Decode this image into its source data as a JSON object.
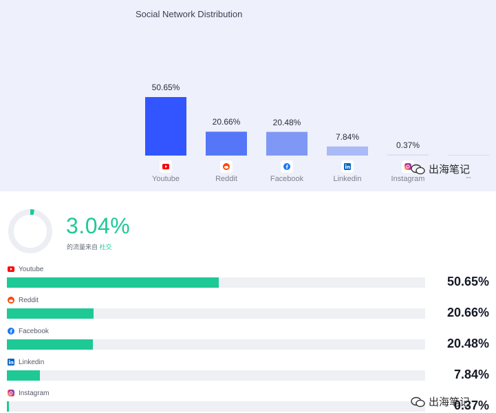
{
  "chart_data": {
    "type": "bar",
    "title": "Social Network Distribution",
    "categories": [
      "Youtube",
      "Reddit",
      "Facebook",
      "Linkedin",
      "Instagram",
      "--"
    ],
    "values": [
      50.65,
      20.66,
      20.48,
      7.84,
      0.37,
      0
    ],
    "value_labels": [
      "50.65%",
      "20.66%",
      "20.48%",
      "7.84%",
      "0.37%",
      ""
    ],
    "colors": [
      "#3355ff",
      "#5577f7",
      "#7f98f5",
      "#aabaf6",
      "#d3dbfa",
      "#d6dcee"
    ],
    "ylim": [
      0,
      50.65
    ],
    "grid": false
  },
  "summary": {
    "big_value": "3.04%",
    "caption_prefix": "的流量来自",
    "caption_accent": "社交",
    "accent_color": "#1ec996",
    "donut_fraction": 0.0304
  },
  "rows": [
    {
      "name": "Youtube",
      "value": 50.65,
      "value_label": "50.65%",
      "icon": "youtube-icon"
    },
    {
      "name": "Reddit",
      "value": 20.66,
      "value_label": "20.66%",
      "icon": "reddit-icon"
    },
    {
      "name": "Facebook",
      "value": 20.48,
      "value_label": "20.48%",
      "icon": "facebook-icon"
    },
    {
      "name": "Linkedin",
      "value": 7.84,
      "value_label": "7.84%",
      "icon": "linkedin-icon"
    },
    {
      "name": "Instagram",
      "value": 0.37,
      "value_label": "0.37%",
      "icon": "instagram-icon"
    }
  ],
  "watermark": "出海笔记"
}
